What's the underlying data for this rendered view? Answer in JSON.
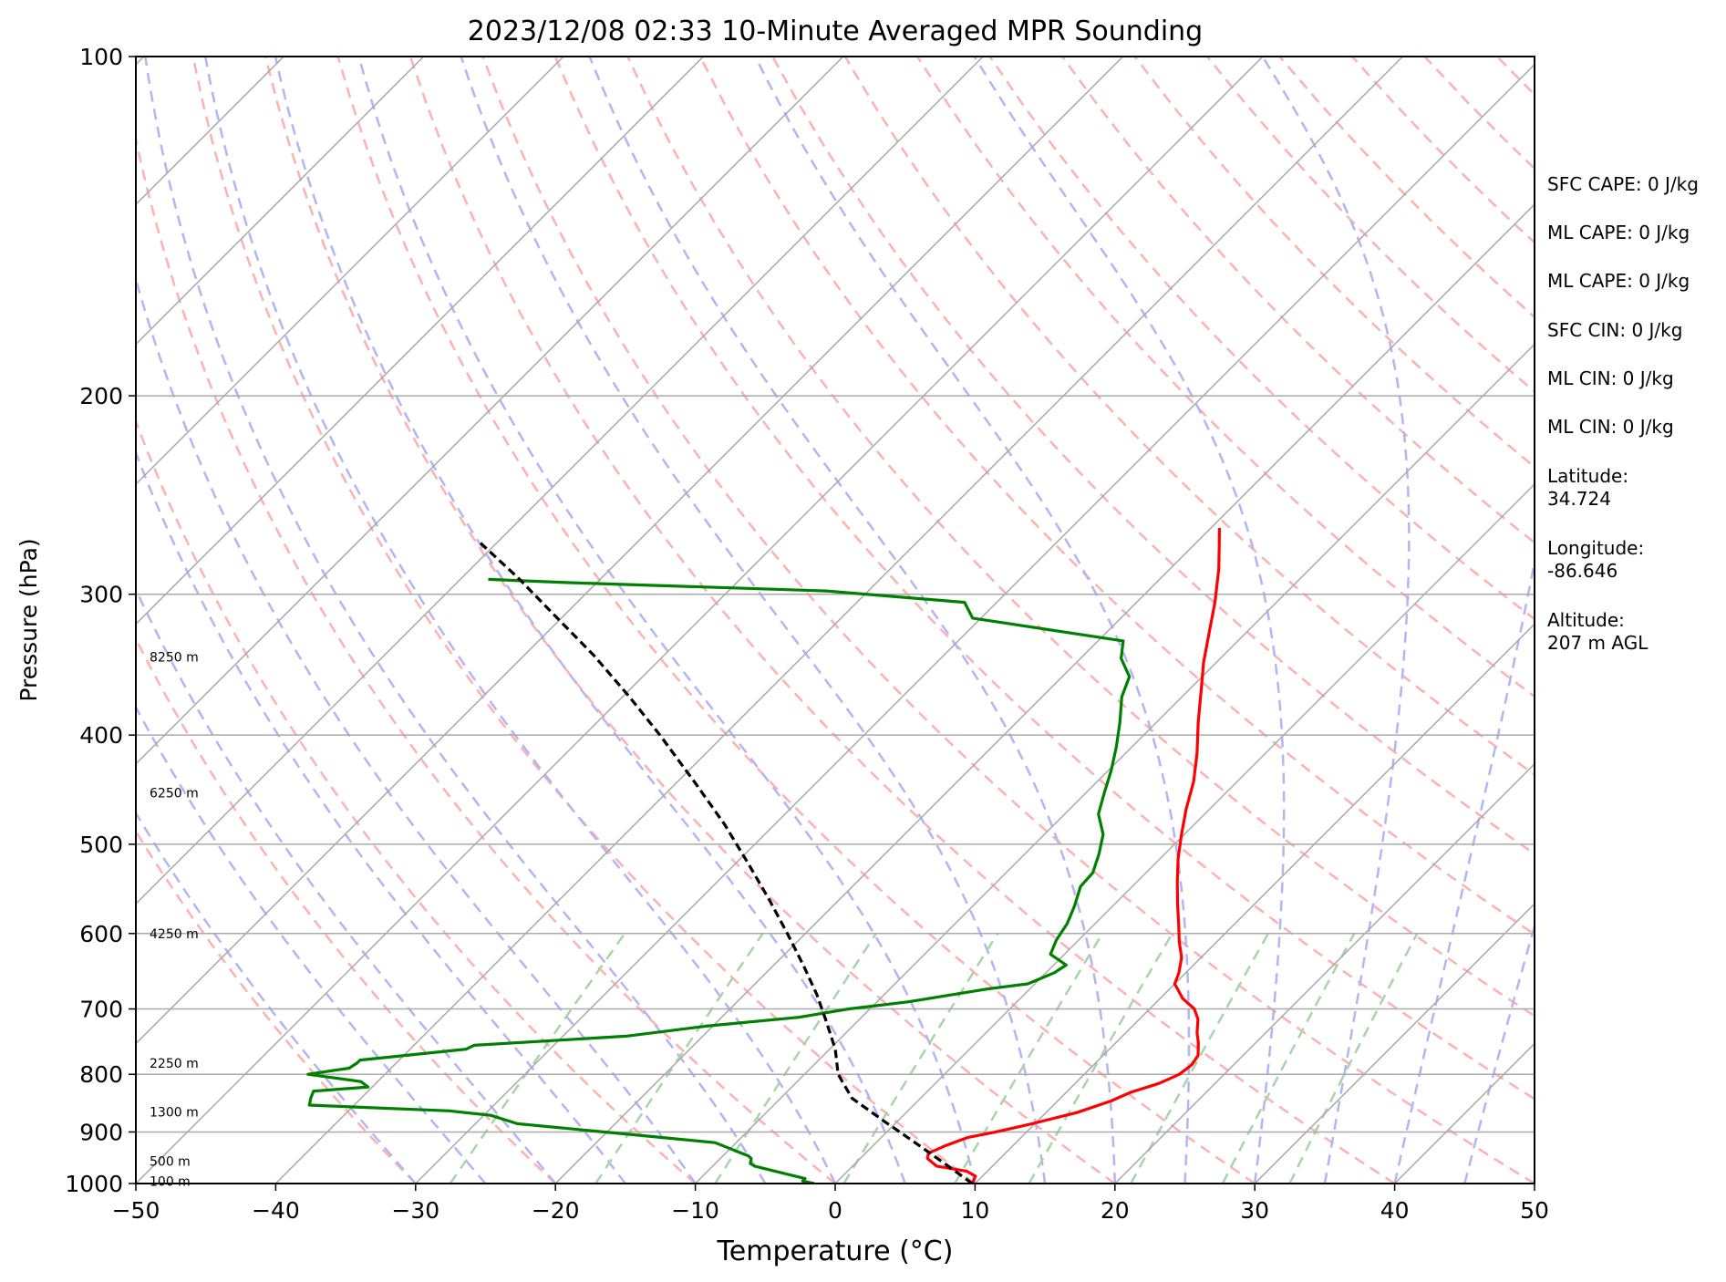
{
  "chart_data": {
    "type": "skew-t",
    "title": "2023/12/08 02:33 10-Minute Averaged MPR Sounding",
    "xlabel": "Temperature (°C)",
    "ylabel": "Pressure (hPa)",
    "xlim": [
      -50,
      50
    ],
    "ylim": [
      1000,
      100
    ],
    "y_scale": "log",
    "x_ticks": [
      "−50",
      "−40",
      "−30",
      "−20",
      "−10",
      "0",
      "10",
      "20",
      "30",
      "40",
      "50"
    ],
    "y_ticks": [
      "100",
      "200",
      "300",
      "400",
      "500",
      "600",
      "700",
      "800",
      "900",
      "1000"
    ],
    "grid": true,
    "colors": {
      "temperature": "#ff0000",
      "dewpoint": "#008000",
      "parcel": "#000000",
      "isotherms": "#a9a9a9",
      "dry_adiabats": "#ffb0b0",
      "moist_adiabats": "#b4b4f5",
      "mixing_ratio": "#a8d5a8"
    },
    "height_labels": [
      {
        "pressure": 995,
        "label": "100 m"
      },
      {
        "pressure": 955,
        "label": "500 m"
      },
      {
        "pressure": 864,
        "label": "1300 m"
      },
      {
        "pressure": 782,
        "label": "2250 m"
      },
      {
        "pressure": 600,
        "label": "4250 m"
      },
      {
        "pressure": 450,
        "label": "6250 m"
      },
      {
        "pressure": 341,
        "label": "8250 m"
      }
    ],
    "series": [
      {
        "key": "temperature",
        "points": [
          [
            1000,
            9.8
          ],
          [
            985,
            9.5
          ],
          [
            975,
            8.5
          ],
          [
            965,
            6.0
          ],
          [
            950,
            4.8
          ],
          [
            940,
            4.5
          ],
          [
            925,
            5.2
          ],
          [
            910,
            6.2
          ],
          [
            900,
            7.8
          ],
          [
            885,
            9.8
          ],
          [
            865,
            12.2
          ],
          [
            845,
            13.8
          ],
          [
            830,
            14.6
          ],
          [
            815,
            16.0
          ],
          [
            800,
            16.8
          ],
          [
            785,
            17.0
          ],
          [
            770,
            16.8
          ],
          [
            750,
            15.9
          ],
          [
            735,
            15.1
          ],
          [
            715,
            14.2
          ],
          [
            700,
            13.2
          ],
          [
            685,
            11.6
          ],
          [
            665,
            10.0
          ],
          [
            650,
            9.5
          ],
          [
            630,
            8.6
          ],
          [
            610,
            7.3
          ],
          [
            590,
            6.1
          ],
          [
            565,
            4.5
          ],
          [
            540,
            2.9
          ],
          [
            515,
            1.3
          ],
          [
            490,
            -0.2
          ],
          [
            465,
            -1.7
          ],
          [
            440,
            -3.1
          ],
          [
            415,
            -4.9
          ],
          [
            390,
            -7.0
          ],
          [
            365,
            -9.1
          ],
          [
            345,
            -10.9
          ],
          [
            325,
            -12.6
          ],
          [
            305,
            -14.4
          ],
          [
            285,
            -16.5
          ],
          [
            272,
            -18.1
          ],
          [
            262,
            -19.4
          ]
        ]
      },
      {
        "key": "dewpoint",
        "points": [
          [
            1000,
            -1.5
          ],
          [
            995,
            -2.5
          ],
          [
            990,
            -2.5
          ],
          [
            975,
            -5.2
          ],
          [
            965,
            -7.0
          ],
          [
            960,
            -7.5
          ],
          [
            950,
            -7.8
          ],
          [
            945,
            -8.2
          ],
          [
            920,
            -11.5
          ],
          [
            905,
            -18.0
          ],
          [
            885,
            -27.0
          ],
          [
            870,
            -29.5
          ],
          [
            862,
            -32.8
          ],
          [
            852,
            -43.2
          ],
          [
            840,
            -43.6
          ],
          [
            828,
            -43.9
          ],
          [
            821,
            -40.3
          ],
          [
            812,
            -41.2
          ],
          [
            800,
            -45.5
          ],
          [
            790,
            -43.0
          ],
          [
            782,
            -42.8
          ],
          [
            777,
            -42.8
          ],
          [
            760,
            -36.0
          ],
          [
            754,
            -35.7
          ],
          [
            740,
            -25.5
          ],
          [
            725,
            -20.5
          ],
          [
            712,
            -14.5
          ],
          [
            700,
            -11.5
          ],
          [
            690,
            -7.8
          ],
          [
            672,
            -3.0
          ],
          [
            665,
            -0.5
          ],
          [
            650,
            0.6
          ],
          [
            640,
            0.9
          ],
          [
            626,
            -1.0
          ],
          [
            608,
            -1.6
          ],
          [
            588,
            -2.0
          ],
          [
            568,
            -2.7
          ],
          [
            545,
            -3.7
          ],
          [
            530,
            -3.8
          ],
          [
            510,
            -4.7
          ],
          [
            490,
            -5.8
          ],
          [
            470,
            -7.6
          ],
          [
            450,
            -8.7
          ],
          [
            430,
            -9.8
          ],
          [
            410,
            -11.1
          ],
          [
            390,
            -12.6
          ],
          [
            370,
            -14.3
          ],
          [
            355,
            -15.2
          ],
          [
            342,
            -17.1
          ],
          [
            330,
            -18.2
          ],
          [
            315,
            -30.6
          ],
          [
            305,
            -32.3
          ],
          [
            298,
            -43.0
          ],
          [
            293,
            -62.0
          ],
          [
            291,
            -68.0
          ]
        ]
      },
      {
        "key": "parcel",
        "points": [
          [
            1000,
            9.8
          ],
          [
            960,
            6.4
          ],
          [
            920,
            2.8
          ],
          [
            880,
            -1.0
          ],
          [
            840,
            -4.9
          ],
          [
            800,
            -7.6
          ],
          [
            760,
            -9.6
          ],
          [
            720,
            -12.1
          ],
          [
            680,
            -14.8
          ],
          [
            640,
            -17.9
          ],
          [
            600,
            -21.3
          ],
          [
            560,
            -25.0
          ],
          [
            520,
            -29.1
          ],
          [
            480,
            -33.6
          ],
          [
            440,
            -38.8
          ],
          [
            400,
            -44.6
          ],
          [
            370,
            -49.5
          ],
          [
            340,
            -55.0
          ],
          [
            310,
            -61.4
          ],
          [
            290,
            -66.0
          ],
          [
            270,
            -71.2
          ]
        ]
      }
    ]
  },
  "info_panel": {
    "sfc_cape": "SFC CAPE: 0 J/kg",
    "ml_cape_1": "ML CAPE: 0 J/kg",
    "ml_cape_2": "ML CAPE: 0 J/kg",
    "sfc_cin": "SFC CIN: 0 J/kg",
    "ml_cin_1": "ML CIN: 0 J/kg",
    "ml_cin_2": "ML CIN: 0 J/kg",
    "latitude_label": "Latitude:",
    "latitude_value": "34.724",
    "longitude_label": "Longitude:",
    "longitude_value": "-86.646",
    "altitude_label": "Altitude:",
    "altitude_value": "207 m AGL"
  }
}
